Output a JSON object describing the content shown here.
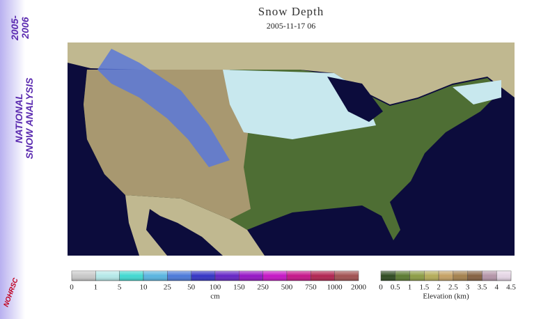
{
  "sidebar": {
    "years": "2005-\n2006",
    "title": "NATIONAL\nSNOW ANALYSIS",
    "logo": "NOHRSC"
  },
  "header": {
    "title": "Snow Depth",
    "date": "2005-11-17 06"
  },
  "legends": [
    {
      "ticks": [
        0,
        1,
        5,
        10,
        25,
        50,
        100,
        150,
        250,
        500,
        750,
        1000,
        2000
      ],
      "unit": "cm",
      "colors": [
        "#c8c8c8",
        "#b4e8e8",
        "#40d8d0",
        "#58b4e0",
        "#4a78d8",
        "#3434c4",
        "#6424c4",
        "#9414c4",
        "#c414c4",
        "#c41488",
        "#b02450",
        "#a05050"
      ]
    },
    {
      "ticks": [
        0,
        0.5,
        1,
        1.5,
        2,
        2.5,
        3,
        3.5,
        4,
        4.5
      ],
      "unit": "Elevation (km)",
      "colors": [
        "#2e4a20",
        "#5a7a30",
        "#8c9c44",
        "#b4ac58",
        "#c4a064",
        "#a4804c",
        "#846040",
        "#b494a8",
        "#e4d4e4"
      ]
    }
  ]
}
